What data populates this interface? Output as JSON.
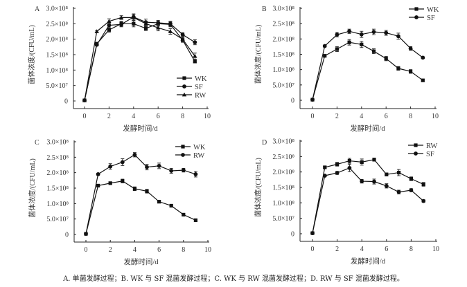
{
  "caption": "A. 单菌发酵过程；B. WK 与 SF 混菌发酵过程；C. WK 与 RW 混菌发酵过程；D. RW 与 SF 混菌发酵过程。",
  "chart_data": [
    {
      "type": "line",
      "panel": "A",
      "xlabel": "发酵时间/d",
      "ylabel": "菌体浓度/(CFU/mL)",
      "xlim": [
        -1,
        10
      ],
      "ylim": [
        -25000000.0,
        300000000.0
      ],
      "xticks": [
        0,
        2,
        4,
        6,
        8,
        10
      ],
      "yticks": [
        0,
        50000000.0,
        100000000.0,
        150000000.0,
        200000000.0,
        250000000.0,
        300000000.0
      ],
      "ytick_labels": [
        "0",
        "5.0×10⁷",
        "1.0×10⁸",
        "1.5×10⁸",
        "2.0×10⁸",
        "2.5×10⁸",
        "3.0×10⁸"
      ],
      "legend": "bottom-right",
      "grid": false,
      "x": [
        0,
        1,
        2,
        3,
        4,
        5,
        6,
        7,
        8,
        9
      ],
      "series": [
        {
          "name": "WK",
          "marker": "square",
          "values": [
            2000000.0,
            185000000.0,
            230000000.0,
            250000000.0,
            250000000.0,
            235000000.0,
            250000000.0,
            248000000.0,
            197000000.0,
            128000000.0
          ],
          "errors": [
            0,
            5000000.0,
            7000000.0,
            8000000.0,
            10000000.0,
            7000000.0,
            8000000.0,
            8000000.0,
            7000000.0,
            5000000.0
          ]
        },
        {
          "name": "SF",
          "marker": "circle",
          "values": [
            2000000.0,
            182000000.0,
            245000000.0,
            248000000.0,
            272000000.0,
            255000000.0,
            253000000.0,
            250000000.0,
            215000000.0,
            190000000.0
          ],
          "errors": [
            0,
            4000000.0,
            8000000.0,
            8000000.0,
            10000000.0,
            10000000.0,
            8000000.0,
            8000000.0,
            6000000.0,
            8000000.0
          ]
        },
        {
          "name": "RW",
          "marker": "triangle",
          "values": [
            2000000.0,
            225000000.0,
            258000000.0,
            270000000.0,
            270000000.0,
            250000000.0,
            237000000.0,
            225000000.0,
            200000000.0,
            145000000.0
          ],
          "errors": [
            0,
            3000000.0,
            8000000.0,
            6000000.0,
            10000000.0,
            8000000.0,
            10000000.0,
            9000000.0,
            6000000.0,
            10000000.0
          ]
        }
      ]
    },
    {
      "type": "line",
      "panel": "B",
      "xlabel": "发酵时间/d",
      "ylabel": "菌体浓度/(CFU/mL)",
      "xlim": [
        -1,
        10
      ],
      "ylim": [
        -25000000.0,
        300000000.0
      ],
      "xticks": [
        0,
        2,
        4,
        6,
        8,
        10
      ],
      "yticks": [
        0,
        50000000.0,
        100000000.0,
        150000000.0,
        200000000.0,
        250000000.0,
        300000000.0
      ],
      "ytick_labels": [
        "0",
        "5.0×10⁷",
        "1.0×10⁸",
        "1.5×10⁸",
        "2.0×10⁸",
        "2.5×10⁸",
        "3.0×10⁸"
      ],
      "legend": "top-right",
      "grid": false,
      "x": [
        0,
        1,
        2,
        3,
        4,
        5,
        6,
        7,
        8,
        9
      ],
      "series": [
        {
          "name": "WK",
          "marker": "square",
          "values": [
            2000000.0,
            145000000.0,
            167000000.0,
            189000000.0,
            182000000.0,
            160000000.0,
            136000000.0,
            104000000.0,
            94000000.0,
            65000000.0
          ],
          "errors": [
            0,
            3000000.0,
            8000000.0,
            9000000.0,
            10000000.0,
            8000000.0,
            7000000.0,
            6000000.0,
            6000000.0,
            3000000.0
          ]
        },
        {
          "name": "SF",
          "marker": "circle",
          "values": [
            2000000.0,
            177000000.0,
            214000000.0,
            225000000.0,
            215000000.0,
            223000000.0,
            220000000.0,
            209000000.0,
            169000000.0,
            139000000.0
          ],
          "errors": [
            0,
            3000000.0,
            7000000.0,
            7000000.0,
            10000000.0,
            9000000.0,
            8000000.0,
            10000000.0,
            6000000.0,
            3000000.0
          ]
        }
      ]
    },
    {
      "type": "line",
      "panel": "C",
      "xlabel": "发酵时间/d",
      "ylabel": "菌体浓度/(CFU/mL)",
      "xlim": [
        -1,
        10
      ],
      "ylim": [
        -25000000.0,
        300000000.0
      ],
      "xticks": [
        0,
        2,
        4,
        6,
        8,
        10
      ],
      "yticks": [
        0,
        50000000.0,
        100000000.0,
        150000000.0,
        200000000.0,
        250000000.0,
        300000000.0
      ],
      "ytick_labels": [
        "0",
        "5.0×10⁷",
        "1.0×10⁸",
        "1.5×10⁸",
        "2.0×10⁸",
        "2.5×10⁸",
        "3.0×10⁸"
      ],
      "legend": "top-right",
      "grid": false,
      "x": [
        0,
        1,
        2,
        3,
        4,
        5,
        6,
        7,
        8,
        9
      ],
      "series": [
        {
          "name": "WK",
          "marker": "square",
          "values": [
            2000000.0,
            158000000.0,
            166000000.0,
            173000000.0,
            148000000.0,
            140000000.0,
            106000000.0,
            93000000.0,
            64000000.0,
            46000000.0
          ],
          "errors": [
            0,
            3000000.0,
            4000000.0,
            6000000.0,
            6000000.0,
            6000000.0,
            3000000.0,
            3000000.0,
            2000000.0,
            2000000.0
          ]
        },
        {
          "name": "RW",
          "marker": "circle",
          "values": [
            2000000.0,
            195000000.0,
            220000000.0,
            234000000.0,
            258000000.0,
            218000000.0,
            222000000.0,
            206000000.0,
            208000000.0,
            195000000.0
          ],
          "errors": [
            0,
            3000000.0,
            9000000.0,
            11000000.0,
            7000000.0,
            9000000.0,
            9000000.0,
            8000000.0,
            6000000.0,
            9000000.0
          ]
        }
      ]
    },
    {
      "type": "line",
      "panel": "D",
      "xlabel": "发酵时间/d",
      "ylabel": "菌体浓度/(CFU/mL)",
      "xlim": [
        -1,
        10
      ],
      "ylim": [
        -25000000.0,
        300000000.0
      ],
      "xticks": [
        0,
        2,
        4,
        6,
        8,
        10
      ],
      "yticks": [
        0,
        50000000.0,
        100000000.0,
        150000000.0,
        200000000.0,
        250000000.0,
        300000000.0
      ],
      "ytick_labels": [
        "0",
        "5.0×10⁷",
        "1.0×10⁸",
        "1.5×10⁸",
        "2.0×10⁸",
        "2.5×10⁸",
        "3.0×10⁸"
      ],
      "legend": "top-right",
      "grid": false,
      "x": [
        0,
        1,
        2,
        3,
        4,
        5,
        6,
        7,
        8,
        9
      ],
      "series": [
        {
          "name": "RW",
          "marker": "square",
          "values": [
            2000000.0,
            215000000.0,
            225000000.0,
            236000000.0,
            232000000.0,
            240000000.0,
            192000000.0,
            198000000.0,
            178000000.0,
            160000000.0
          ],
          "errors": [
            0,
            3000000.0,
            6000000.0,
            8000000.0,
            10000000.0,
            5000000.0,
            5000000.0,
            10000000.0,
            6000000.0,
            6000000.0
          ]
        },
        {
          "name": "SF",
          "marker": "circle",
          "values": [
            2000000.0,
            188000000.0,
            197000000.0,
            213000000.0,
            170000000.0,
            169000000.0,
            155000000.0,
            135000000.0,
            141000000.0,
            106000000.0
          ],
          "errors": [
            0,
            3000000.0,
            5000000.0,
            12000000.0,
            6000000.0,
            8000000.0,
            7000000.0,
            6000000.0,
            5000000.0,
            4000000.0
          ]
        }
      ]
    }
  ]
}
